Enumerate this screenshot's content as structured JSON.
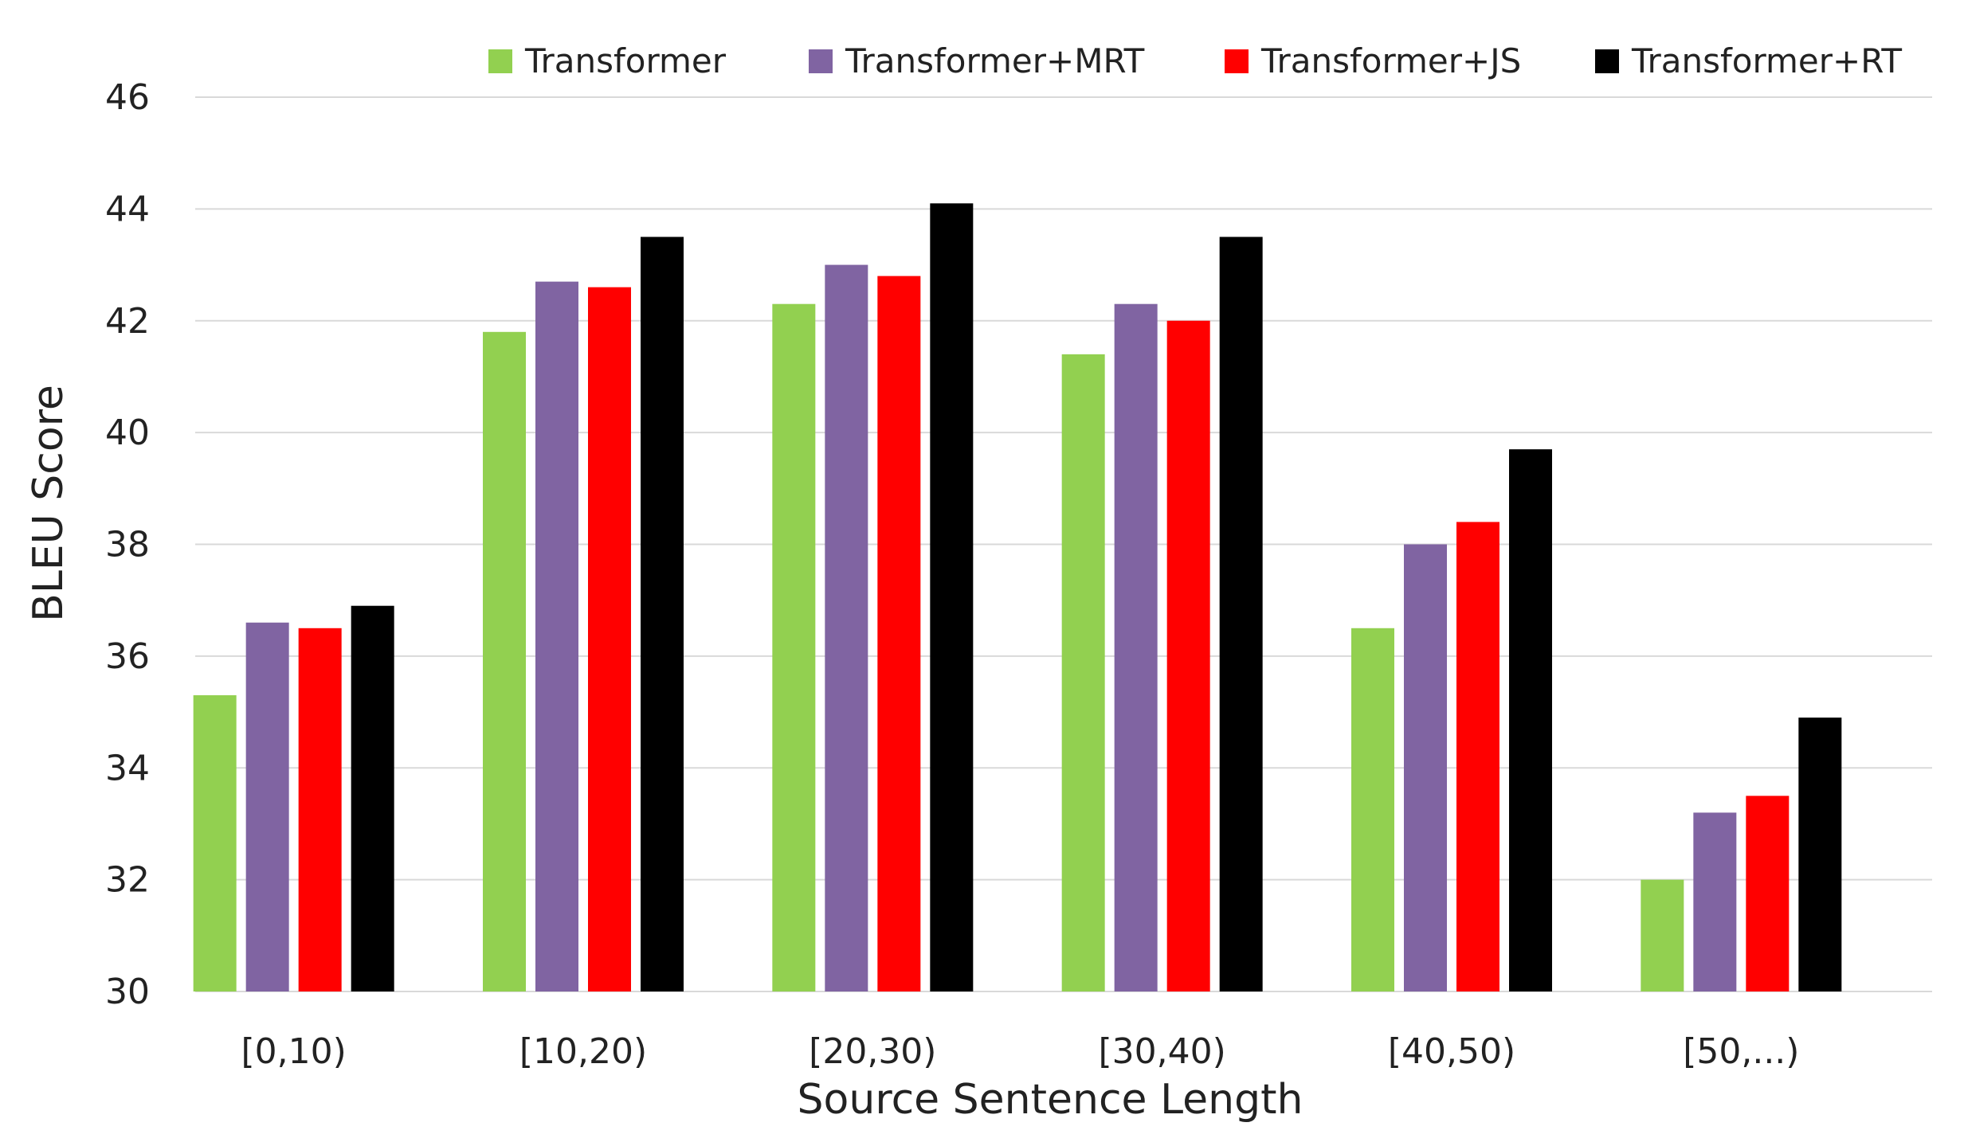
{
  "chart_data": {
    "type": "bar",
    "title": "",
    "xlabel": "Source Sentence Length",
    "ylabel": "BLEU Score",
    "ylim": [
      30,
      46
    ],
    "yticks": [
      30,
      32,
      34,
      36,
      38,
      40,
      42,
      44,
      46
    ],
    "grid": true,
    "legend": "top",
    "categories": [
      "[0,10)",
      "[10,20)",
      "[20,30)",
      "[30,40)",
      "[40,50)",
      "[50,...)"
    ],
    "series": [
      {
        "name": "Transformer",
        "color": "#92d050",
        "values": [
          35.3,
          41.8,
          42.3,
          41.4,
          36.5,
          32.0
        ]
      },
      {
        "name": "Transformer+MRT",
        "color": "#8064a2",
        "values": [
          36.6,
          42.7,
          43.0,
          42.3,
          38.0,
          33.2
        ]
      },
      {
        "name": "Transformer+JS",
        "color": "#ff0000",
        "values": [
          36.5,
          42.6,
          42.8,
          42.0,
          38.4,
          33.5
        ]
      },
      {
        "name": "Transformer+RT",
        "color": "#000000",
        "values": [
          36.9,
          43.5,
          44.1,
          43.5,
          39.7,
          34.9
        ]
      }
    ]
  }
}
